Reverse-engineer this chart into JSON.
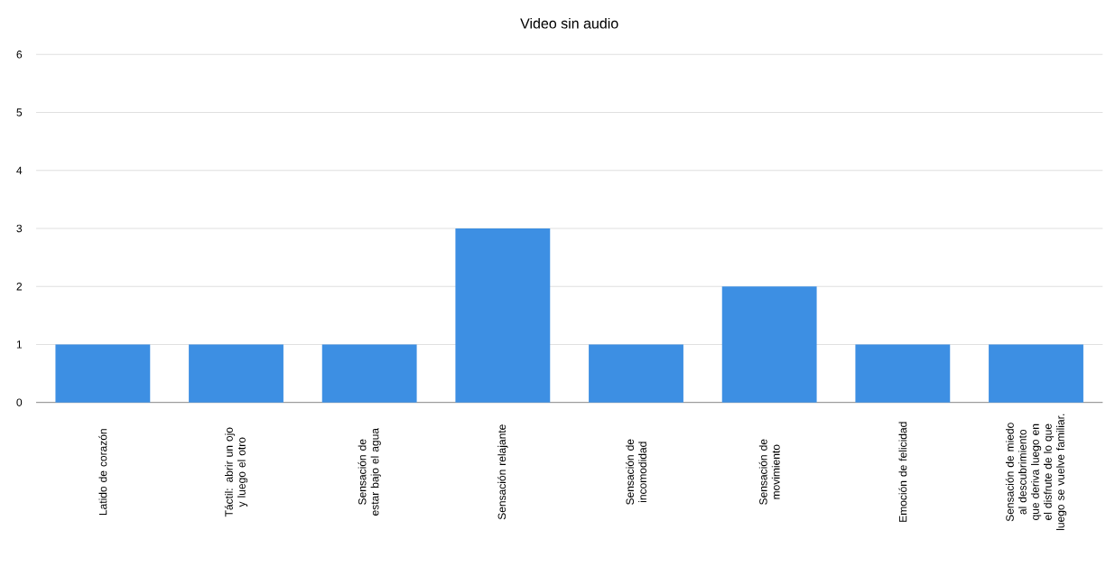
{
  "chart_data": {
    "type": "bar",
    "title": "Video sin audio",
    "categories": [
      "Latido de corazón",
      "Táctil: abrir un ojo y luego el otro",
      "Sensación de estar bajo el agua",
      "Sensación relajante",
      "Sensación de incomodidad",
      "Sensación de movimiento",
      "Emoción de felicidad",
      "Sensación de miedo al descubrimiento que deriva luego en el disfrute de lo que luego se vuelve familiar."
    ],
    "values": [
      1,
      1,
      1,
      3,
      1,
      2,
      1,
      1
    ],
    "color": "#3d8fe3",
    "ylim": [
      0,
      6
    ],
    "yticks": [
      0,
      1,
      2,
      3,
      4,
      5,
      6
    ],
    "grid": "y"
  }
}
